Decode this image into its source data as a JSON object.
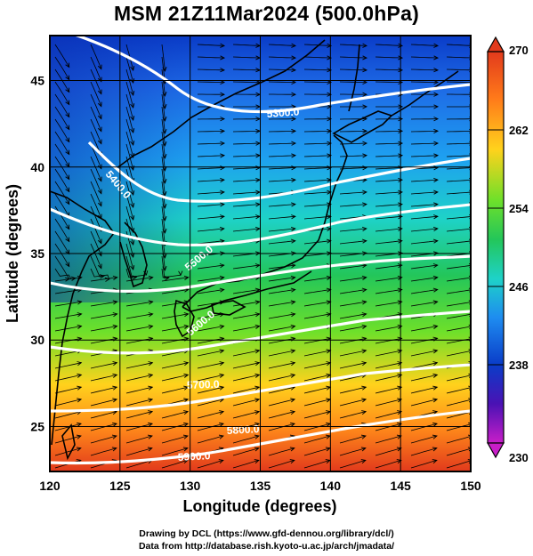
{
  "title": "MSM 21Z11Mar2024 (500.0hPa)",
  "x_axis": {
    "label": "Longitude (degrees)",
    "range": [
      120,
      150
    ],
    "ticks": [
      120,
      125,
      130,
      135,
      140,
      145,
      150
    ]
  },
  "y_axis": {
    "label": "Latitude  (degrees)",
    "range": [
      22.4,
      47.6
    ],
    "ticks": [
      25,
      30,
      35,
      40,
      45
    ]
  },
  "colorbar": {
    "range": [
      230,
      270
    ],
    "tick_labels": [
      "270",
      "262",
      "254",
      "246",
      "238",
      "230"
    ],
    "tick_values": [
      270,
      262,
      254,
      246,
      238,
      230
    ],
    "colors": [
      "#e23a1c",
      "#ff7a1a",
      "#ffd21c",
      "#6ee02a",
      "#23c65a",
      "#1ed2c8",
      "#1e8cf0",
      "#0a3cc8",
      "#4a12b4",
      "#c81ec8"
    ]
  },
  "contours": [
    {
      "label": "5300.0"
    },
    {
      "label": "5400.0"
    },
    {
      "label": "5500.0"
    },
    {
      "label": "5600.0"
    },
    {
      "label": "5700.0"
    },
    {
      "label": "5800.0"
    },
    {
      "label": "5900.0"
    }
  ],
  "credits": {
    "line1": "Drawing by DCL (https://www.gfd-dennou.org/library/dcl/)",
    "line2": "Data from http://database.rish.kyoto-u.ac.jp/arch/jmadata/"
  },
  "colors": {
    "contour": "#ffffff",
    "streamline": "#000000",
    "coast": "#000000",
    "grid": "#000000"
  }
}
